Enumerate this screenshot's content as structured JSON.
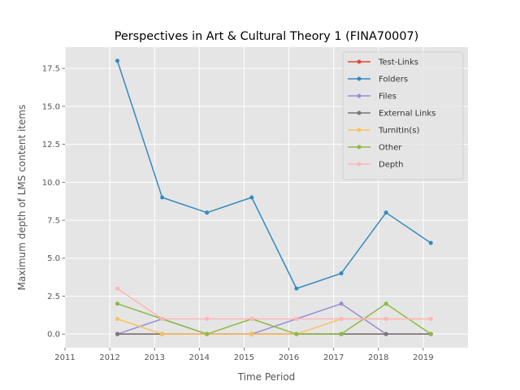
{
  "chart_data": {
    "type": "line",
    "title": "Perspectives in Art & Cultural Theory 1 (FINA70007)",
    "xlabel": "Time Period",
    "ylabel": "Maximum depth of LMS content items",
    "xlim": [
      2011,
      2020
    ],
    "ylim": [
      -0.9,
      18.9
    ],
    "xticks": [
      2011,
      2012,
      2013,
      2014,
      2015,
      2016,
      2017,
      2018,
      2019
    ],
    "xtick_labels": [
      "2011",
      "2012",
      "2013",
      "2014",
      "2015",
      "2016",
      "2017",
      "2018",
      "2019"
    ],
    "yticks": [
      0,
      2.5,
      5,
      7.5,
      10,
      12.5,
      15,
      17.5
    ],
    "ytick_labels": [
      "0.0",
      "2.5",
      "5.0",
      "7.5",
      "10.0",
      "12.5",
      "15.0",
      "17.5"
    ],
    "x": [
      2012.17,
      2013.17,
      2014.17,
      2015.17,
      2016.17,
      2017.17,
      2018.17,
      2019.17
    ],
    "grid": true,
    "legend_position": "top-right",
    "series": [
      {
        "name": "Test-Links",
        "color": "#E24A33",
        "values": [
          0,
          0,
          0,
          0,
          0,
          0,
          0,
          0
        ]
      },
      {
        "name": "Folders",
        "color": "#348ABD",
        "values": [
          18,
          9,
          8,
          9,
          3,
          4,
          8,
          6
        ]
      },
      {
        "name": "Files",
        "color": "#988ED5",
        "values": [
          0,
          1,
          0,
          0,
          1,
          2,
          0,
          0
        ]
      },
      {
        "name": "External Links",
        "color": "#777777",
        "values": [
          0,
          0,
          0,
          0,
          0,
          0,
          0,
          0
        ]
      },
      {
        "name": "TurnItIn(s)",
        "color": "#FBC15E",
        "values": [
          1,
          0,
          0,
          0,
          0,
          1,
          1,
          1
        ]
      },
      {
        "name": "Other",
        "color": "#8EBA42",
        "values": [
          2,
          1,
          0,
          1,
          0,
          0,
          2,
          0
        ]
      },
      {
        "name": "Depth",
        "color": "#FFB5B8",
        "values": [
          3,
          1,
          1,
          1,
          1,
          1,
          1,
          1
        ]
      }
    ]
  }
}
